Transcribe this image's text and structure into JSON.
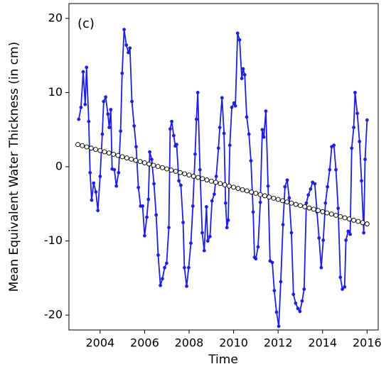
{
  "chart_data": {
    "type": "line",
    "annotation": "(c)",
    "y_label": "Mean Equivalent Water Thickness (in cm)",
    "x_label": "Time",
    "xlim": [
      2002.6,
      2016.5
    ],
    "ylim": [
      -22,
      22
    ],
    "xticks": [
      2004,
      2006,
      2008,
      2010,
      2012,
      2014,
      2016
    ],
    "yticks": [
      -20,
      -10,
      0,
      10,
      20
    ],
    "series": [
      {
        "color": "#1f1fe0",
        "marker": "dot",
        "x": [
          2003.04,
          2003.14,
          2003.24,
          2003.33,
          2003.39,
          2003.49,
          2003.55,
          2003.62,
          2003.71,
          2003.81,
          2003.9,
          2004.0,
          2004.1,
          2004.16,
          2004.25,
          2004.35,
          2004.41,
          2004.48,
          2004.54,
          2004.64,
          2004.73,
          2004.83,
          2004.92,
          2004.99,
          2005.08,
          2005.18,
          2005.27,
          2005.34,
          2005.43,
          2005.53,
          2005.62,
          2005.72,
          2005.82,
          2005.91,
          2006.0,
          2006.1,
          2006.17,
          2006.23,
          2006.32,
          2006.42,
          2006.52,
          2006.61,
          2006.71,
          2006.8,
          2006.9,
          2006.99,
          2007.09,
          2007.15,
          2007.22,
          2007.31,
          2007.38,
          2007.44,
          2007.54,
          2007.63,
          2007.73,
          2007.79,
          2007.89,
          2007.98,
          2008.08,
          2008.17,
          2008.27,
          2008.33,
          2008.39,
          2008.49,
          2008.59,
          2008.68,
          2008.78,
          2008.84,
          2008.94,
          2009.03,
          2009.13,
          2009.22,
          2009.32,
          2009.38,
          2009.48,
          2009.57,
          2009.64,
          2009.7,
          2009.76,
          2009.83,
          2009.92,
          2010.02,
          2010.08,
          2010.18,
          2010.27,
          2010.37,
          2010.43,
          2010.5,
          2010.59,
          2010.69,
          2010.78,
          2010.88,
          2010.94,
          2011.0,
          2011.1,
          2011.2,
          2011.29,
          2011.36,
          2011.45,
          2011.55,
          2011.64,
          2011.74,
          2011.83,
          2011.93,
          2012.03,
          2012.12,
          2012.22,
          2012.31,
          2012.41,
          2012.5,
          2012.6,
          2012.69,
          2012.79,
          2012.89,
          2012.98,
          2013.08,
          2013.17,
          2013.27,
          2013.36,
          2013.46,
          2013.55,
          2013.65,
          2013.75,
          2013.84,
          2013.94,
          2014.03,
          2014.13,
          2014.22,
          2014.32,
          2014.41,
          2014.51,
          2014.6,
          2014.7,
          2014.8,
          2014.89,
          2014.99,
          2015.05,
          2015.15,
          2015.24,
          2015.31,
          2015.4,
          2015.46,
          2015.56,
          2015.66,
          2015.75,
          2015.85,
          2015.91,
          2016.0
        ],
        "values": [
          6.4,
          8.0,
          12.8,
          8.4,
          13.4,
          6.1,
          -0.8,
          -4.5,
          -2.2,
          -3.4,
          -5.9,
          -1.3,
          4.4,
          8.8,
          9.4,
          7.1,
          5.3,
          7.7,
          -0.3,
          -0.4,
          -2.6,
          -0.8,
          4.8,
          12.6,
          18.5,
          16.4,
          15.4,
          16.0,
          8.8,
          5.5,
          2.7,
          -2.8,
          -5.3,
          -5.3,
          -9.3,
          -6.8,
          -4.4,
          2.0,
          1.0,
          -2.3,
          -6.5,
          -11.9,
          -16.0,
          -15.1,
          -13.6,
          -13.0,
          -8.2,
          5.1,
          6.1,
          4.2,
          2.8,
          3.0,
          -1.9,
          -2.5,
          -7.5,
          -13.6,
          -16.1,
          -13.6,
          -10.3,
          -5.3,
          1.7,
          6.4,
          10.0,
          -0.4,
          -8.9,
          -11.3,
          -5.4,
          -10.0,
          -9.4,
          -4.6,
          -3.7,
          -1.3,
          2.5,
          5.3,
          9.3,
          4.5,
          -4.9,
          -8.2,
          -7.2,
          2.9,
          8.0,
          8.6,
          8.2,
          18.0,
          17.1,
          11.9,
          13.2,
          12.4,
          6.7,
          4.4,
          0.8,
          -6.1,
          -12.2,
          -12.4,
          -10.8,
          -4.8,
          5.0,
          4.0,
          7.5,
          -2.6,
          -12.7,
          -12.9,
          -16.7,
          -19.6,
          -21.5,
          -15.5,
          -7.8,
          -2.7,
          -1.8,
          -4.2,
          -8.9,
          -17.2,
          -18.4,
          -19.1,
          -19.5,
          -18.1,
          -16.5,
          -4.9,
          -3.8,
          -3.0,
          -2.1,
          -2.3,
          -6.1,
          -9.6,
          -13.6,
          -9.9,
          -4.9,
          -2.7,
          -0.4,
          2.7,
          2.9,
          -0.4,
          -5.6,
          -14.9,
          -16.5,
          -16.2,
          -9.9,
          -8.7,
          -9.1,
          2.5,
          5.3,
          10.0,
          7.2,
          3.4,
          -1.9,
          -8.9,
          1.0,
          6.3
        ]
      },
      {
        "color": "#000000",
        "marker": "open-circle",
        "x": [
          2003.0,
          2003.2,
          2003.4,
          2003.6,
          2003.8,
          2004.0,
          2004.2,
          2004.4,
          2004.6,
          2004.8,
          2005.0,
          2005.2,
          2005.4,
          2005.6,
          2005.8,
          2006.0,
          2006.2,
          2006.4,
          2006.6,
          2006.8,
          2007.0,
          2007.2,
          2007.4,
          2007.6,
          2007.8,
          2008.0,
          2008.2,
          2008.4,
          2008.6,
          2008.8,
          2009.0,
          2009.2,
          2009.4,
          2009.6,
          2009.8,
          2010.0,
          2010.2,
          2010.4,
          2010.6,
          2010.8,
          2011.0,
          2011.2,
          2011.4,
          2011.6,
          2011.8,
          2012.0,
          2012.2,
          2012.4,
          2012.6,
          2012.8,
          2013.0,
          2013.2,
          2013.4,
          2013.6,
          2013.8,
          2014.0,
          2014.2,
          2014.4,
          2014.6,
          2014.8,
          2015.0,
          2015.2,
          2015.4,
          2015.6,
          2015.8,
          2016.0
        ],
        "values": [
          3.0,
          2.84,
          2.67,
          2.51,
          2.34,
          2.18,
          2.01,
          1.85,
          1.68,
          1.52,
          1.35,
          1.19,
          1.02,
          0.86,
          0.7,
          0.53,
          0.37,
          0.2,
          0.04,
          -0.13,
          -0.29,
          -0.46,
          -0.62,
          -0.79,
          -0.95,
          -1.12,
          -1.28,
          -1.44,
          -1.61,
          -1.77,
          -1.94,
          -2.1,
          -2.27,
          -2.43,
          -2.6,
          -2.76,
          -2.93,
          -3.09,
          -3.25,
          -3.42,
          -3.58,
          -3.75,
          -3.91,
          -4.08,
          -4.24,
          -4.41,
          -4.57,
          -4.74,
          -4.9,
          -5.07,
          -5.23,
          -5.39,
          -5.56,
          -5.72,
          -5.89,
          -6.05,
          -6.22,
          -6.38,
          -6.55,
          -6.71,
          -6.88,
          -7.04,
          -7.21,
          -7.37,
          -7.53,
          -7.7
        ]
      }
    ]
  }
}
